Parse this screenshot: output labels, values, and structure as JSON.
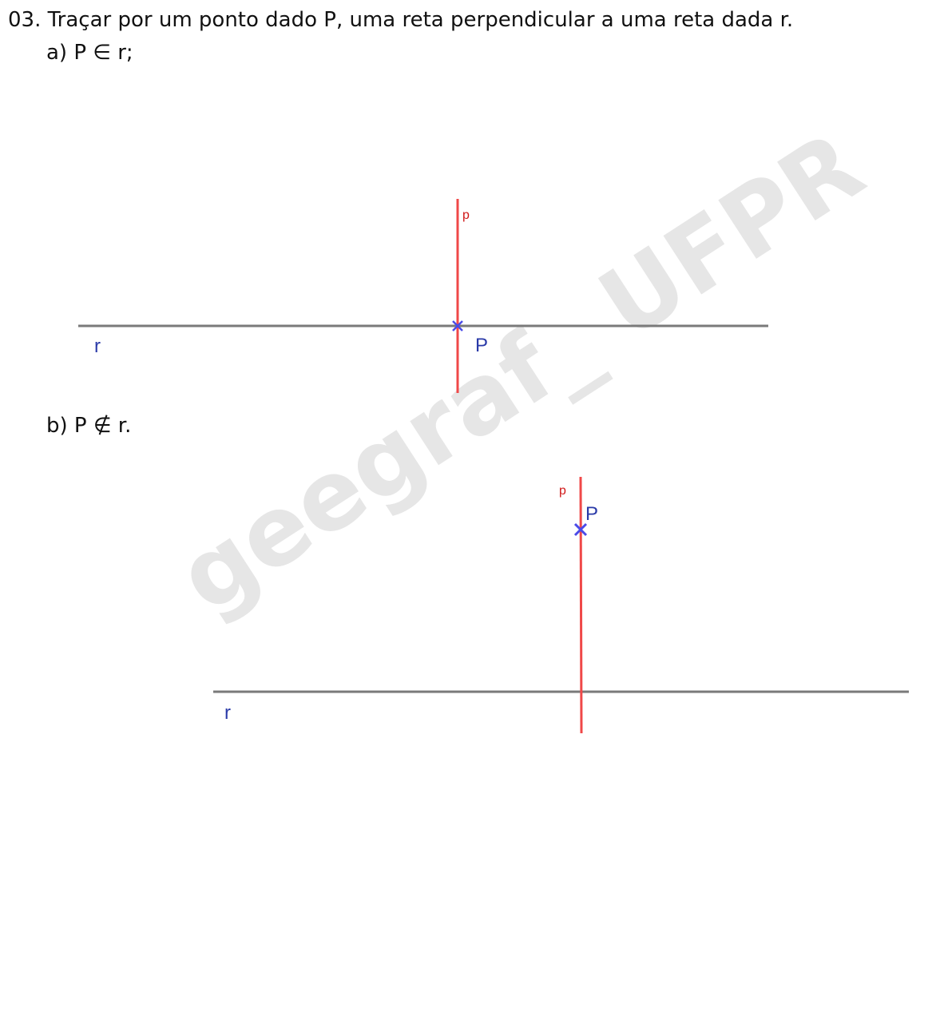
{
  "exercise": {
    "title": "03.  Traçar por um ponto dado P, uma reta perpendicular a uma reta dada r."
  },
  "part_a": {
    "label": "a) P ∈ r;",
    "line_r_label": "r",
    "point_label": "P",
    "perpendicular_label": "p"
  },
  "part_b": {
    "label": "b) P ∉ r.",
    "line_r_label": "r",
    "point_label": "P",
    "perpendicular_label": "p"
  },
  "watermark": {
    "text": "geegraf_ UFPR"
  },
  "colors": {
    "given_line": "#7a7a7a",
    "perpendicular": "#f04848",
    "point": "#4a4ae8",
    "label_blue": "#2a3aa8",
    "label_red": "#d01818",
    "watermark": "#e6e6e6",
    "text": "#111111"
  }
}
